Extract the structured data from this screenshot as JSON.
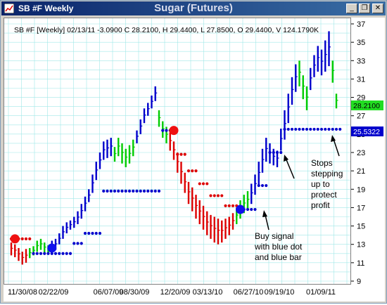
{
  "window": {
    "title": "SB #F Weekly",
    "chart_title": "Sugar (Futures)",
    "icon": "chart-app-icon",
    "controls": [
      "minimize-icon",
      "restore-icon",
      "close-icon"
    ]
  },
  "chart_header": "SB #F [Weekly] 02/13/11  -3.0900 C 28.2100, H 29.4400, L 27.8500, O 29.4400, V 124.1790K",
  "price_badges": {
    "close": "28.2100",
    "stop": "25.5322"
  },
  "annotations": {
    "stops": [
      "Stops",
      "stepping",
      "up to",
      "protect",
      "profit"
    ],
    "buy": [
      "Buy signal",
      "with blue dot",
      "and blue bar"
    ]
  },
  "colors": {
    "up_bar": "#00cc00",
    "trend_bar": "#0000cc",
    "down_bar": "#dd0000",
    "grid": "#a0e8e8",
    "close_badge": "#22dd22",
    "stop_badge": "#0000cc"
  },
  "chart_data": {
    "type": "bar",
    "ylim": [
      9,
      37
    ],
    "yticks": [
      9,
      11,
      13,
      15,
      17,
      19,
      21,
      23,
      25,
      27,
      29,
      31,
      33,
      35,
      37
    ],
    "xticks": [
      "11/30/08",
      "02/22/09",
      "06/07/09",
      "08/30/09",
      "12/20/09",
      "03/13/10",
      "06/27/10",
      "09/19/10",
      "01/09/11"
    ],
    "segments": [
      {
        "color": "red",
        "start": 0,
        "highs": [
          13.2,
          13.0,
          12.6,
          12.2,
          12.5
        ],
        "lows": [
          11.8,
          11.6,
          11.2,
          10.8,
          11.0
        ]
      },
      {
        "color": "green",
        "start": 5,
        "highs": [
          12.6,
          12.8,
          13.4,
          13.6,
          13.2,
          12.9
        ],
        "lows": [
          11.5,
          11.8,
          12.2,
          12.4,
          12.1,
          11.9
        ]
      },
      {
        "color": "blue",
        "start": 11,
        "highs": [
          13.4,
          13.6,
          14.2,
          15.0,
          15.4,
          15.6,
          16.0,
          16.6,
          17.4,
          18.2,
          19.0,
          20.6,
          22.0,
          23.0,
          24.2,
          24.4,
          24.6
        ],
        "lows": [
          12.2,
          12.4,
          13.0,
          13.6,
          14.2,
          14.6,
          14.8,
          15.2,
          15.8,
          16.6,
          17.6,
          18.6,
          20.0,
          21.2,
          22.2,
          22.4,
          22.6
        ]
      },
      {
        "color": "green",
        "start": 28,
        "highs": [
          23.6,
          24.6,
          24.0,
          23.4,
          23.8,
          24.4
        ],
        "lows": [
          22.0,
          22.6,
          21.8,
          21.4,
          21.8,
          22.6
        ]
      },
      {
        "color": "blue",
        "start": 34,
        "highs": [
          25.4,
          26.6,
          27.8,
          28.4,
          29.2,
          30.2
        ],
        "lows": [
          24.0,
          25.0,
          26.2,
          27.0,
          27.8,
          28.6
        ]
      },
      {
        "color": "green",
        "start": 40,
        "highs": [
          27.6,
          26.4,
          25.8
        ],
        "lows": [
          25.8,
          24.6,
          24.0
        ]
      },
      {
        "color": "red",
        "start": 43,
        "highs": [
          25.2,
          24.2,
          23.0,
          22.0,
          20.8,
          19.8,
          19.2,
          18.4,
          17.8,
          17.2,
          16.6,
          16.2,
          16.0,
          15.8,
          15.6,
          15.8,
          16.0,
          16.4
        ],
        "lows": [
          23.2,
          22.2,
          20.8,
          19.6,
          18.6,
          17.4,
          16.6,
          15.8,
          15.2,
          14.6,
          14.0,
          13.6,
          13.2,
          13.0,
          13.2,
          13.6,
          14.0,
          14.6
        ]
      },
      {
        "color": "green",
        "start": 61,
        "highs": [
          17.0,
          17.8,
          18.4,
          18.8
        ],
        "lows": [
          15.2,
          15.8,
          16.4,
          16.8
        ]
      },
      {
        "color": "blue",
        "start": 65,
        "highs": [
          19.6,
          20.6,
          22.0,
          23.4,
          24.6,
          24.0,
          23.4,
          23.2
        ],
        "lows": [
          17.4,
          18.4,
          19.4,
          20.8,
          22.0,
          21.8,
          21.6,
          21.4
        ]
      },
      {
        "color": "blue",
        "start": 73,
        "highs": [
          25.6,
          27.6,
          29.4,
          31.2,
          32.6
        ],
        "lows": [
          23.2,
          24.4,
          26.2,
          28.2,
          29.6
        ]
      },
      {
        "color": "green",
        "start": 78,
        "highs": [
          33.0,
          31.4,
          30.2
        ],
        "lows": [
          30.2,
          28.8,
          27.6
        ]
      },
      {
        "color": "blue",
        "start": 81,
        "highs": [
          32.2,
          33.6,
          34.6,
          34.2,
          35.2,
          36.2
        ],
        "lows": [
          29.8,
          31.2,
          31.8,
          31.4,
          31.8,
          32.4
        ]
      },
      {
        "color": "green",
        "start": 87,
        "highs": [
          33.0,
          29.4
        ],
        "lows": [
          30.6,
          27.8
        ]
      }
    ],
    "dot_series": [
      {
        "color": "red",
        "start": 0,
        "end": 5,
        "value": 13.6
      },
      {
        "color": "blue",
        "start": 6,
        "end": 16,
        "value": 12.0
      },
      {
        "color": "blue",
        "start": 17,
        "end": 19,
        "value": 13.1
      },
      {
        "color": "blue",
        "start": 20,
        "end": 24,
        "value": 14.2
      },
      {
        "color": "blue",
        "start": 25,
        "end": 40,
        "value": 18.8
      },
      {
        "color": "blue",
        "start": 41,
        "end": 44,
        "value": 25.4
      },
      {
        "color": "red",
        "start": 45,
        "end": 47,
        "value": 22.8
      },
      {
        "color": "red",
        "start": 48,
        "end": 50,
        "value": 21.0
      },
      {
        "color": "red",
        "start": 51,
        "end": 53,
        "value": 19.6
      },
      {
        "color": "red",
        "start": 54,
        "end": 57,
        "value": 18.3
      },
      {
        "color": "red",
        "start": 58,
        "end": 61,
        "value": 17.2
      },
      {
        "color": "blue",
        "start": 62,
        "end": 66,
        "value": 16.8
      },
      {
        "color": "blue",
        "start": 67,
        "end": 69,
        "value": 19.4
      },
      {
        "color": "blue",
        "start": 70,
        "end": 73,
        "value": 23.0
      },
      {
        "color": "blue",
        "start": 74,
        "end": 89,
        "value": 25.53
      }
    ],
    "signals": [
      {
        "color": "red",
        "index": 1,
        "value": 13.6
      },
      {
        "color": "blue",
        "index": 11,
        "value": 12.6
      },
      {
        "color": "red",
        "index": 44,
        "value": 25.4
      },
      {
        "color": "blue",
        "index": 62,
        "value": 16.8
      }
    ]
  }
}
